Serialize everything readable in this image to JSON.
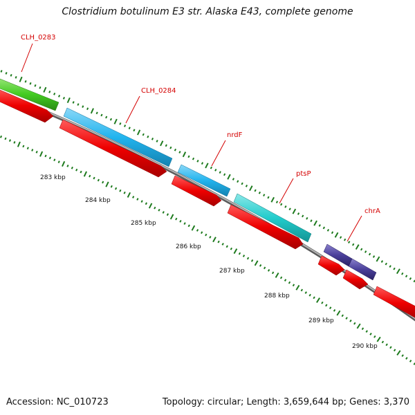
{
  "title": "Clostridium botulinum E3 str. Alaska E43, complete genome",
  "footer": {
    "accession": "Accession: NC_010723",
    "topology": "Topology: circular; Length: 3,659,644 bp; Genes: 3,370"
  },
  "ruler": {
    "tick_labels": [
      "283 kbp",
      "284 kbp",
      "285 kbp",
      "286 kbp",
      "287 kbp",
      "288 kbp",
      "289 kbp",
      "290 kbp"
    ]
  },
  "gene_labels": [
    "CLH_0283",
    "CLH_0284",
    "nrdF",
    "ptsP",
    "chrA"
  ],
  "colors": {
    "backbone": "#808080",
    "cds_red": "#ee0000",
    "gene_green": "#44cc22",
    "gene_sky": "#22b4ee",
    "gene_teal": "#22cccc",
    "gene_indigo": "#4a3f9a",
    "tick_green": "#1d7a1d",
    "label_red": "#d40000"
  }
}
